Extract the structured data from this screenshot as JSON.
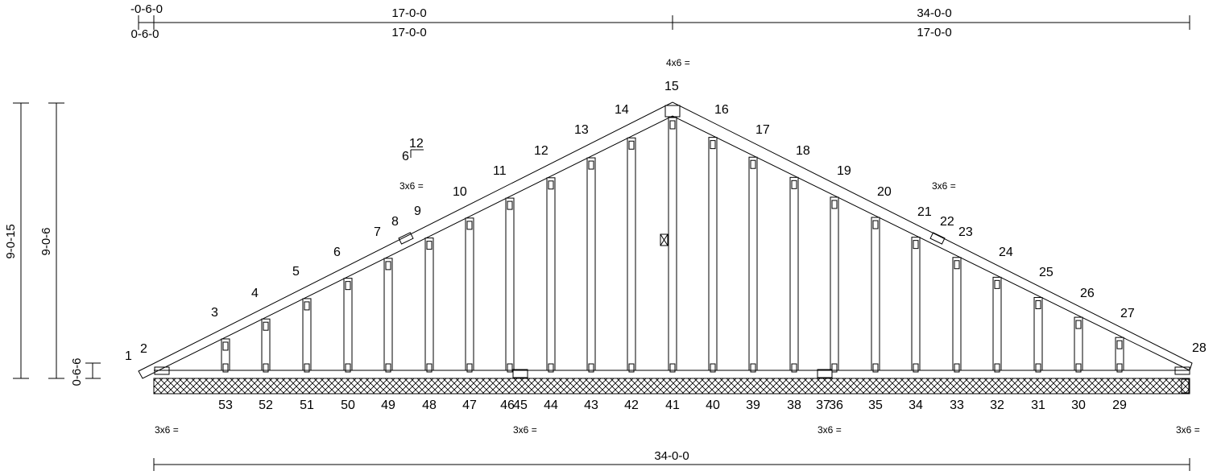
{
  "top_dims": {
    "overhang_left_top": "-0-6-0",
    "overhang_left_bottom": "0-6-0",
    "seg1_top": "17-0-0",
    "seg1_bottom": "17-0-0",
    "seg2_top": "34-0-0",
    "seg2_bottom": "17-0-0"
  },
  "bottom_dim": "34-0-0",
  "vertical_dims": {
    "overall": "9-0-15",
    "ridge": "9-0-6",
    "heel": "0-6-6"
  },
  "pitch": {
    "rise": "6",
    "run": "12"
  },
  "plates": {
    "peak": "4x6",
    "left_chord": "3x6",
    "right_chord": "3x6",
    "bottom_left": "3x6",
    "bottom_mid1": "3x6",
    "bottom_mid2": "3x6",
    "bottom_right": "3x6",
    "plate_symbol": "="
  },
  "top_nodes": [
    "1",
    "2",
    "3",
    "4",
    "5",
    "6",
    "7",
    "8",
    "9",
    "10",
    "11",
    "12",
    "13",
    "14",
    "15",
    "16",
    "17",
    "18",
    "19",
    "20",
    "21",
    "22",
    "23",
    "24",
    "25",
    "26",
    "27",
    "28"
  ],
  "bottom_nodes": [
    "53",
    "52",
    "51",
    "50",
    "49",
    "48",
    "47",
    "46",
    "45",
    "44",
    "43",
    "42",
    "41",
    "40",
    "39",
    "38",
    "37",
    "36",
    "35",
    "34",
    "33",
    "32",
    "31",
    "30",
    "29"
  ]
}
